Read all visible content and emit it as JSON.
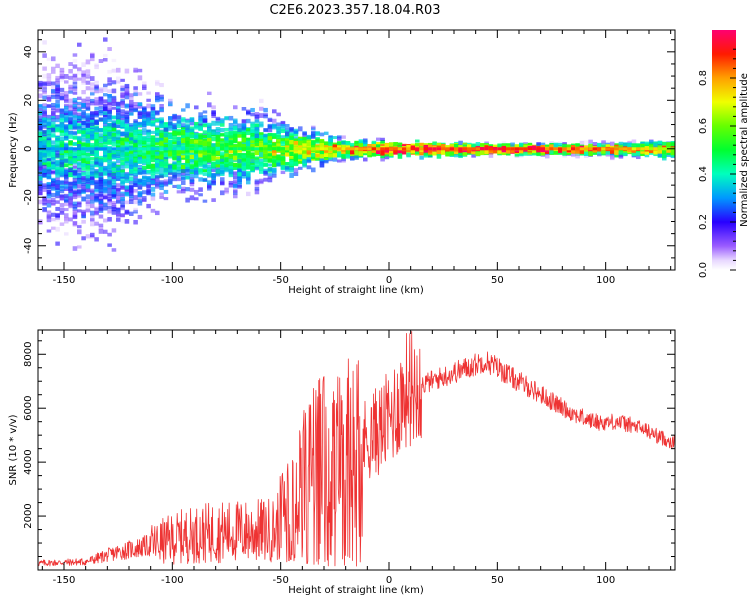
{
  "title": "C2E6.2023.357.18.04.R03",
  "chart_data": [
    {
      "type": "heatmap",
      "xlabel": "Height of straight line (km)",
      "ylabel": "Frequency (Hz)",
      "xlim": [
        -162,
        132
      ],
      "ylim": [
        -50,
        49
      ],
      "x_ticks": [
        -150,
        -100,
        -50,
        0,
        50,
        100
      ],
      "y_ticks": [
        -40,
        -20,
        0,
        20,
        40
      ],
      "colorbar": {
        "label": "Normalized spectral amplitude",
        "range": [
          0,
          1
        ],
        "ticks": [
          0.0,
          0.2,
          0.4,
          0.6,
          0.8
        ],
        "tick_labels": [
          "0.0",
          "0.2",
          "0.4",
          "0.6",
          "0.8"
        ],
        "colormap": "gist_rainbow_r"
      },
      "envelope": [
        {
          "x": -162,
          "spread": 48,
          "core": 14,
          "peak": 0.3
        },
        {
          "x": -130,
          "spread": 48,
          "core": 14,
          "peak": 0.35
        },
        {
          "x": -100,
          "spread": 25,
          "core": 12,
          "peak": 0.45
        },
        {
          "x": -60,
          "spread": 22,
          "core": 9,
          "peak": 0.55
        },
        {
          "x": -40,
          "spread": 12,
          "core": 5,
          "peak": 0.7
        },
        {
          "x": -20,
          "spread": 6,
          "core": 2,
          "peak": 0.85
        },
        {
          "x": 0,
          "spread": 4,
          "core": 2,
          "peak": 0.95
        },
        {
          "x": 50,
          "spread": 3,
          "core": 1,
          "peak": 1.0
        },
        {
          "x": 100,
          "spread": 4,
          "core": 1,
          "peak": 0.9
        },
        {
          "x": 132,
          "spread": 5,
          "core": 2,
          "peak": 0.7
        }
      ]
    },
    {
      "type": "line",
      "xlabel": "Height of straight line (km)",
      "ylabel": "SNR (10 * v/v)",
      "xlim": [
        -162,
        132
      ],
      "ylim": [
        0,
        8900
      ],
      "x_ticks": [
        -150,
        -100,
        -50,
        0,
        50,
        100
      ],
      "y_ticks": [
        2000,
        4000,
        6000,
        8000
      ],
      "color": "#ee3333",
      "series": [
        {
          "x": [
            -162,
            -140,
            -125,
            -110,
            -95,
            -80,
            -60,
            -52,
            -45,
            -38,
            -33,
            -28,
            -22,
            -18,
            -12,
            -5,
            0,
            5,
            9,
            14,
            20,
            30,
            40,
            44,
            50,
            58,
            66,
            72,
            78,
            85,
            92,
            98,
            105,
            112,
            118,
            124,
            132
          ],
          "y": [
            250,
            300,
            650,
            900,
            1200,
            1350,
            1400,
            1450,
            3000,
            3500,
            3900,
            4000,
            4100,
            4300,
            4700,
            5100,
            5500,
            6200,
            6700,
            6800,
            7000,
            7300,
            7600,
            7750,
            7500,
            7050,
            6700,
            6400,
            6100,
            5800,
            5550,
            5450,
            5500,
            5350,
            5200,
            4950,
            4700
          ]
        }
      ]
    }
  ]
}
